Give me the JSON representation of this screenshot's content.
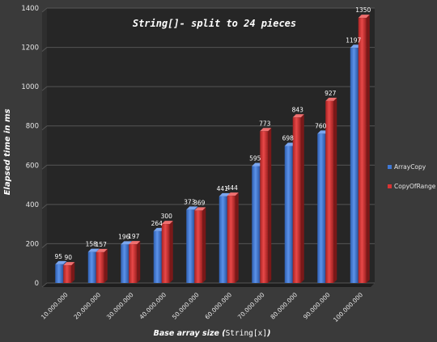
{
  "chart_data": {
    "type": "bar",
    "title": "String[]- split to 24 pieces",
    "ylabel": "Elapsed time in ms",
    "xlabel_prefix": "Base array size (",
    "xlabel_code": "String[x]",
    "xlabel_suffix": ")",
    "ylim": [
      0,
      1400
    ],
    "yticks": [
      0,
      200,
      400,
      600,
      800,
      1000,
      1200,
      1400
    ],
    "grid": true,
    "legend_position": "right",
    "categories": [
      "10.000.000",
      "20.000.000",
      "30.000.000",
      "40.000.000",
      "50.000.000",
      "60.000.000",
      "70.000.000",
      "80.000.000",
      "90.000.000",
      "100.000.000"
    ],
    "series": [
      {
        "name": "ArrayCopy",
        "color": "#3f79d6",
        "values": [
          95,
          158,
          196,
          264,
          373,
          441,
          595,
          698,
          760,
          1197
        ]
      },
      {
        "name": "CopyOfRange",
        "color": "#d93333",
        "values": [
          90,
          157,
          197,
          300,
          369,
          444,
          773,
          843,
          927,
          1350
        ]
      }
    ]
  }
}
